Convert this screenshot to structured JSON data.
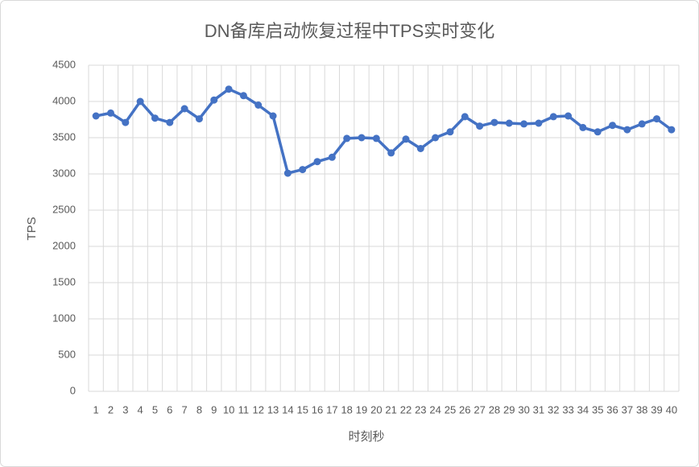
{
  "chart_data": {
    "type": "line",
    "title": "DN备库启动恢复过程中TPS实时变化",
    "x_label": "时刻秒",
    "y_label": "TPS",
    "categories": [
      "1",
      "2",
      "3",
      "4",
      "5",
      "6",
      "7",
      "8",
      "9",
      "10",
      "11",
      "12",
      "13",
      "14",
      "15",
      "16",
      "17",
      "18",
      "19",
      "20",
      "21",
      "22",
      "23",
      "24",
      "25",
      "26",
      "27",
      "28",
      "29",
      "30",
      "31",
      "32",
      "33",
      "34",
      "35",
      "36",
      "37",
      "38",
      "39",
      "40"
    ],
    "series": [
      {
        "name": "TPS",
        "color": "#4472c4",
        "values": [
          3800,
          3840,
          3710,
          4000,
          3770,
          3710,
          3900,
          3760,
          4020,
          4170,
          4080,
          3950,
          3800,
          3010,
          3060,
          3170,
          3230,
          3490,
          3500,
          3490,
          3290,
          3480,
          3350,
          3500,
          3580,
          3790,
          3660,
          3710,
          3700,
          3690,
          3700,
          3790,
          3800,
          3640,
          3580,
          3670,
          3610,
          3690,
          3760,
          3610
        ]
      }
    ],
    "ylim": [
      0,
      4500
    ],
    "yticks": [
      0,
      500,
      1000,
      1500,
      2000,
      2500,
      3000,
      3500,
      4000,
      4500
    ],
    "grid": true
  }
}
